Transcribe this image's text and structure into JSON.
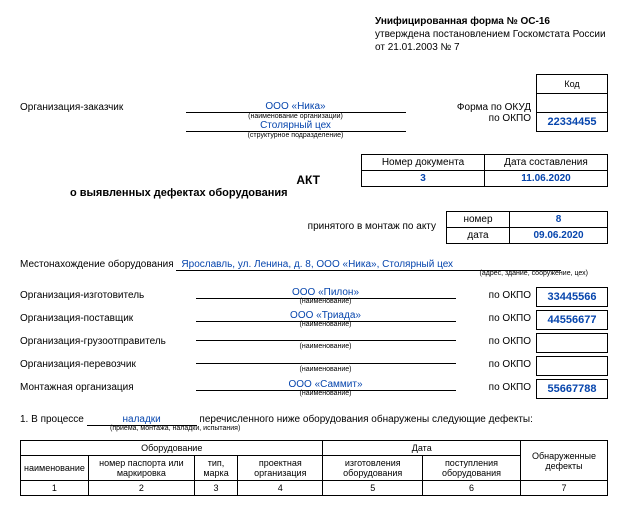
{
  "header": {
    "form_title": "Унифицированная форма № ОС-16",
    "approved": "утверждена постановлением Госкомстата России",
    "date": "от 21.01.2003 № 7"
  },
  "codes": {
    "code_label": "Код",
    "okud_label": "Форма по ОКУД",
    "okud_value": "",
    "okpo_label": "по ОКПО",
    "okpo_value": "22334455"
  },
  "customer": {
    "label": "Организация-заказчик",
    "name": "ООО «Ника»",
    "name_hint": "(наименование организации)",
    "subdiv": "Столярный цех",
    "subdiv_hint": "(структурное подразделение)"
  },
  "doc_box": {
    "num_label": "Номер документа",
    "num_value": "3",
    "date_label": "Дата составления",
    "date_value": "11.06.2020"
  },
  "title1": "АКТ",
  "title2": "о выявленных дефектах оборудования",
  "acceptance": {
    "text": "принятого в монтаж по акту",
    "num_label": "номер",
    "num_value": "8",
    "date_label": "дата",
    "date_value": "09.06.2020"
  },
  "location": {
    "label": "Местонахождение оборудования",
    "value": "Ярославль, ул. Ленина, д. 8, ООО «Ника», Столярный цех",
    "hint": "(адрес, здание, сооружение, цех)"
  },
  "orgs": [
    {
      "label": "Организация-изготовитель",
      "value": "ООО «Пилон»",
      "okpo": "33445566"
    },
    {
      "label": "Организация-поставщик",
      "value": "ООО «Триада»",
      "okpo": "44556677"
    },
    {
      "label": "Организация-грузоотправитель",
      "value": "",
      "okpo": ""
    },
    {
      "label": "Организация-перевозчик",
      "value": "",
      "okpo": ""
    },
    {
      "label": "Монтажная организация",
      "value": "ООО «Саммит»",
      "okpo": "55667788"
    }
  ],
  "org_hint": "(наименование)",
  "okpo_label": "по ОКПО",
  "process": {
    "prefix": "1. В процессе",
    "value": "наладки",
    "suffix": "перечисленного ниже оборудования обнаружены следующие дефекты:",
    "hint": "(приема, монтажа, наладки, испытания)"
  },
  "table": {
    "equip": "Оборудование",
    "date": "Дата",
    "defects": "Обнаруженные дефекты",
    "h_name": "наименование",
    "h_passport": "номер паспорта или маркировка",
    "h_type": "тип, марка",
    "h_project": "проектная организация",
    "h_made": "изготовления оборудования",
    "h_receipt": "поступления оборудования",
    "nums": [
      "1",
      "2",
      "3",
      "4",
      "5",
      "6",
      "7"
    ]
  }
}
